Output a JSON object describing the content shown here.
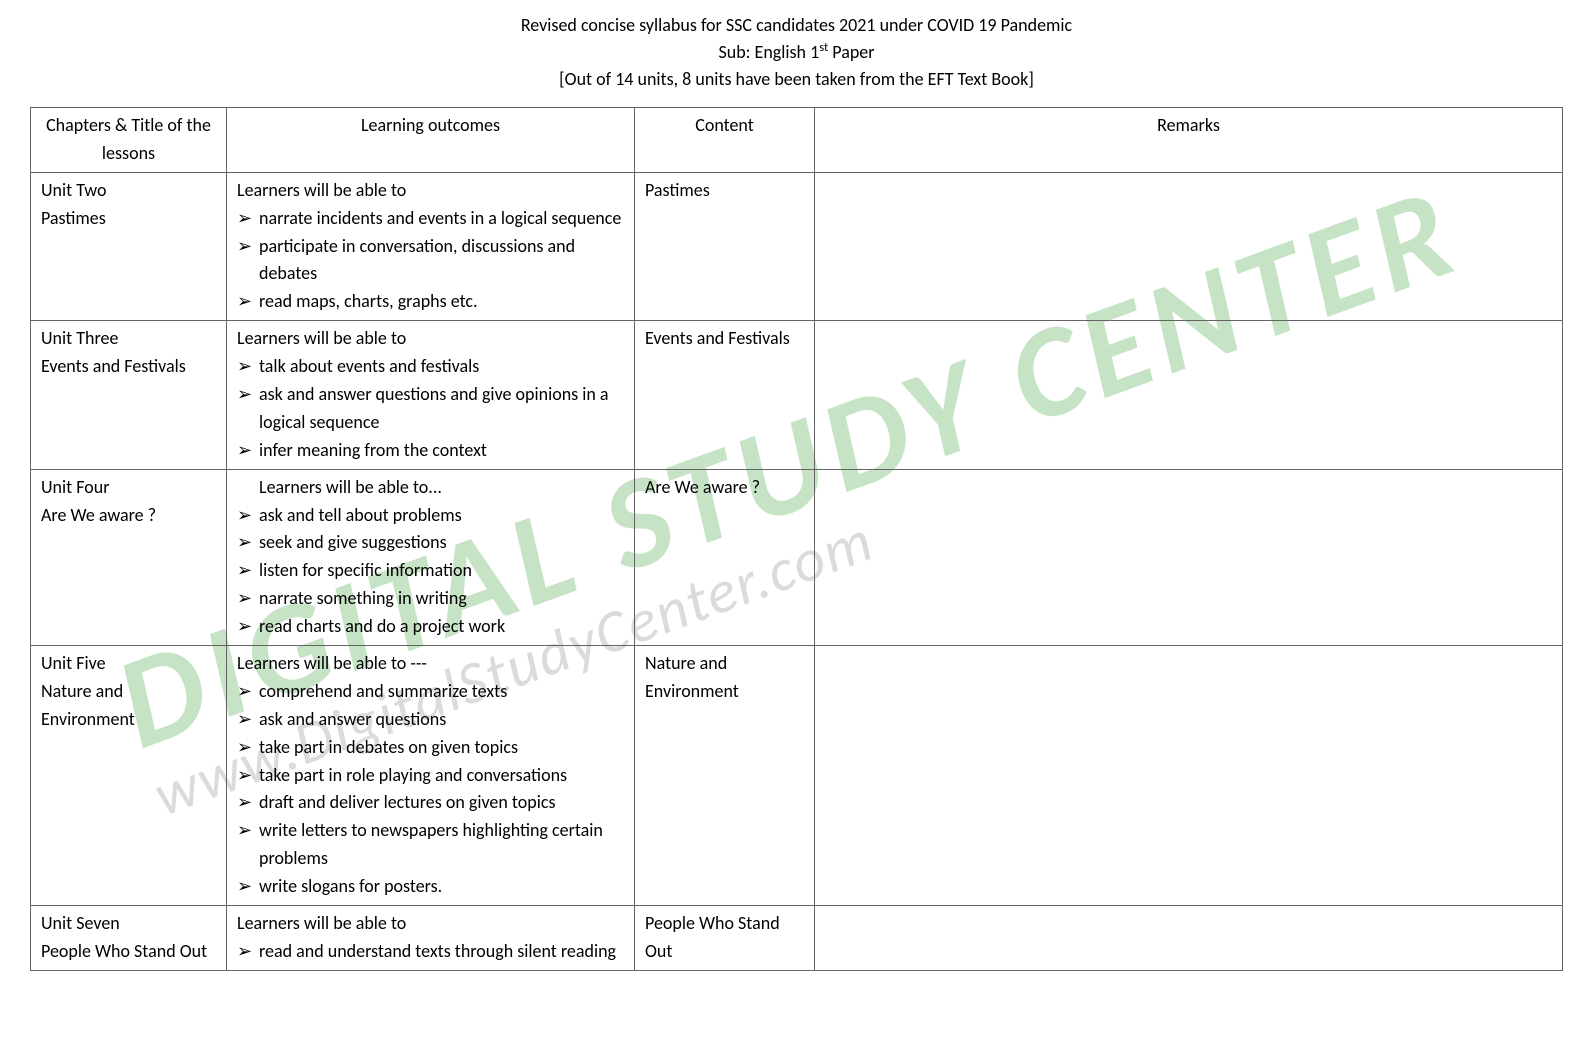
{
  "header": {
    "line1": "Revised concise syllabus for SSC candidates 2021 under COVID 19 Pandemic",
    "line2_prefix": "Sub: English 1",
    "line2_sup": "st",
    "line2_suffix": " Paper",
    "line3": "[Out of 14 units, 8 units have been taken from the EFT Text Book]"
  },
  "watermark": {
    "main": "DIGITAL STUDY CENTER",
    "sub": "www.DigitalStudyCenter.com"
  },
  "columns": {
    "c0": "Chapters & Title of the lessons",
    "c1": "Learning outcomes",
    "c2": "Content",
    "c3": "Remarks"
  },
  "rows": [
    {
      "chapter_l1": "Unit Two",
      "chapter_l2": "Pastimes",
      "intro": "Learners will be able to",
      "intro_indent": false,
      "bullets": [
        "narrate incidents and events in a logical sequence",
        "participate in conversation, discussions and debates",
        "read maps, charts, graphs etc."
      ],
      "content": "Pastimes",
      "remarks": ""
    },
    {
      "chapter_l1": "Unit Three",
      "chapter_l2": "Events and Festivals",
      "intro": "Learners will be able to",
      "intro_indent": false,
      "bullets": [
        "talk about events and festivals",
        "ask and answer questions and give opinions in a logical sequence",
        "infer meaning from the context"
      ],
      "content": "Events and Festivals",
      "remarks": ""
    },
    {
      "chapter_l1": "Unit Four",
      "chapter_l2": "Are We aware ?",
      "intro": "Learners will be able to...",
      "intro_indent": true,
      "bullets": [
        "ask and tell about problems",
        "seek and give suggestions",
        "listen for specific information",
        "narrate something in writing",
        "read charts and do a project work"
      ],
      "content": "Are We aware ?",
      "remarks": ""
    },
    {
      "chapter_l1": "Unit Five",
      "chapter_l2": "Nature and Environment",
      "intro": "Learners will be able to ---",
      "intro_indent": false,
      "bullets": [
        "comprehend and summarize texts",
        "ask and answer questions",
        "take part in debates on given topics",
        "take part in role playing and conversations",
        "draft and deliver lectures on given topics",
        "write letters to newspapers highlighting certain problems",
        "write slogans for posters."
      ],
      "content": "Nature and Environment",
      "remarks": ""
    },
    {
      "chapter_l1": "Unit Seven",
      "chapter_l2": "People Who Stand Out",
      "intro": "Learners will be able to",
      "intro_indent": false,
      "bullets": [
        "read and understand texts through silent reading"
      ],
      "content": "People Who Stand Out",
      "remarks": ""
    }
  ]
}
